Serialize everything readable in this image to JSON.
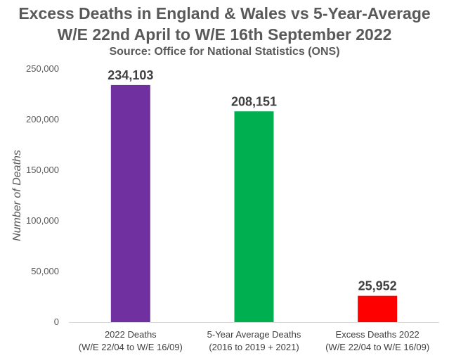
{
  "chart_data": {
    "type": "bar",
    "title": "Excess Deaths in England & Wales vs 5-Year-Average",
    "title_line2": "W/E 22nd April to W/E 16th September 2022",
    "subtitle": "Source: Office for National Statistics (ONS)",
    "xlabel": "",
    "ylabel": "Number of Deaths",
    "categories": [
      [
        "2022 Deaths",
        "(W/E 22/04 to W/E 16/09)"
      ],
      [
        "5-Year Average Deaths",
        "(2016 to 2019 + 2021)"
      ],
      [
        "Excess Deaths 2022",
        "(W/E 22/04 to W/E 16/09)"
      ]
    ],
    "values": [
      234103,
      208151,
      25952
    ],
    "value_labels": [
      "234,103",
      "208,151",
      "25,952"
    ],
    "colors": [
      "#7030a0",
      "#00b050",
      "#ff0000"
    ],
    "ylim": [
      0,
      250000
    ],
    "yticks": [
      0,
      50000,
      100000,
      150000,
      200000,
      250000
    ],
    "ytick_labels": [
      "0",
      "50,000",
      "100,000",
      "150,000",
      "200,000",
      "250,000"
    ],
    "grid": false,
    "legend": "none"
  }
}
